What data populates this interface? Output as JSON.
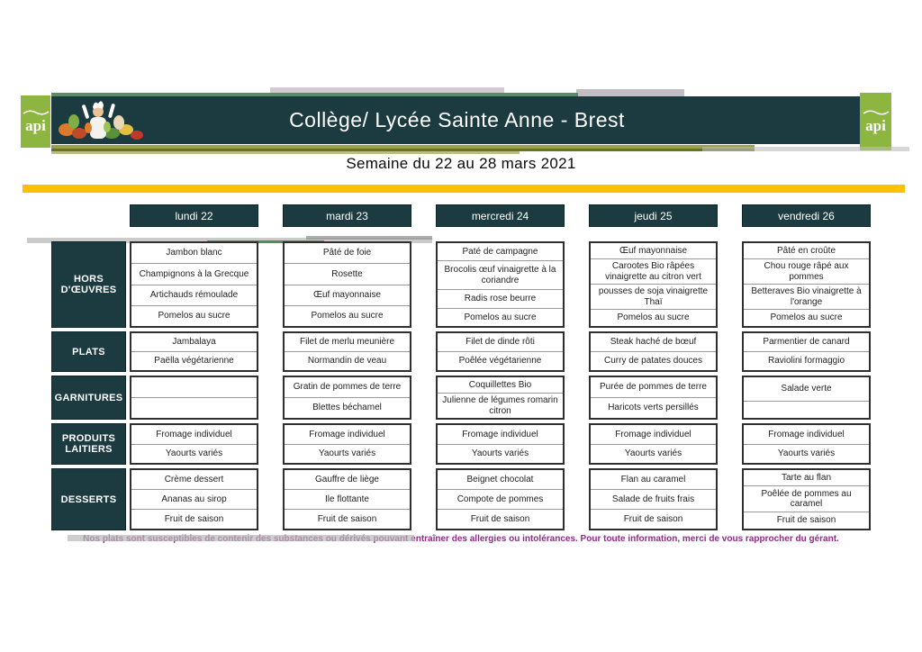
{
  "header": {
    "title": "Collège/ Lycée Sainte Anne - Brest",
    "subtitle": "Semaine du 22 au 28 mars 2021",
    "logo_text": "api"
  },
  "menu": {
    "days": [
      "lundi 22",
      "mardi 23",
      "mercredi 24",
      "jeudi 25",
      "vendredi 26"
    ],
    "categories": [
      {
        "label": "HORS D'ŒUVRES",
        "columns": [
          [
            "Jambon blanc",
            "Champignons à la Grecque",
            "Artichauds rémoulade",
            "Pomelos au sucre"
          ],
          [
            "Pâté de foie",
            "Rosette",
            "Œuf mayonnaise",
            "Pomelos au sucre"
          ],
          [
            "Paté de campagne",
            "Brocolis œuf vinaigrette à la coriandre",
            "Radis rose beurre",
            "Pomelos au sucre"
          ],
          [
            "Œuf mayonnaise",
            "Carootes Bio râpées vinaigrette au citron vert",
            "pousses de soja vinaigrette Thaï",
            "Pomelos au sucre"
          ],
          [
            "Pâté en croûte",
            "Chou rouge râpé aux pommes",
            "Betteraves Bio vinaigrette à l'orange",
            "Pomelos au sucre"
          ]
        ]
      },
      {
        "label": "PLATS",
        "columns": [
          [
            "Jambalaya",
            "Paëlla végétarienne"
          ],
          [
            "Filet de merlu meunière",
            "Normandin de veau"
          ],
          [
            "Filet de dinde rôti",
            "Poêlée végétarienne"
          ],
          [
            "Steak haché de bœuf",
            "Curry de patates douces"
          ],
          [
            "Parmentier de canard",
            "Raviolini formaggio"
          ]
        ]
      },
      {
        "label": "GARNITURES",
        "columns": [
          [
            "",
            ""
          ],
          [
            "Gratin de pommes de terre",
            "Blettes béchamel"
          ],
          [
            "Coquillettes Bio",
            "Julienne de légumes romarin citron"
          ],
          [
            "Purée de pommes de terre",
            "Haricots verts persillés"
          ],
          [
            "Salade verte",
            ""
          ]
        ]
      },
      {
        "label": "PRODUITS LAITIERS",
        "columns": [
          [
            "Fromage individuel",
            "Yaourts variés"
          ],
          [
            "Fromage individuel",
            "Yaourts variés"
          ],
          [
            "Fromage individuel",
            "Yaourts variés"
          ],
          [
            "Fromage individuel",
            "Yaourts variés"
          ],
          [
            "Fromage individuel",
            "Yaourts variés"
          ]
        ]
      },
      {
        "label": "DESSERTS",
        "columns": [
          [
            "Crème dessert",
            "Ananas au sirop",
            "Fruit de saison"
          ],
          [
            "Gauffre de liège",
            "Ile flottante",
            "Fruit de saison"
          ],
          [
            "Beignet chocolat",
            "Compote de pommes",
            "Fruit de saison"
          ],
          [
            "Flan au caramel",
            "Salade de fruits frais",
            "Fruit de saison"
          ],
          [
            "Tarte au flan",
            "Poêlée de pommes au caramel",
            "Fruit de saison"
          ]
        ]
      }
    ]
  },
  "footer": {
    "disclaimer": "Nos plats sont susceptibles de contenir des substances ou dérivés pouvant entraîner des allergies ou intolérances. Pour toute information, merci de vous rapprocher du gérant."
  },
  "colors": {
    "teal": "#1c3b41",
    "green": "#8cb63f",
    "yellow": "#ffc000",
    "magenta": "#8e2c86"
  }
}
